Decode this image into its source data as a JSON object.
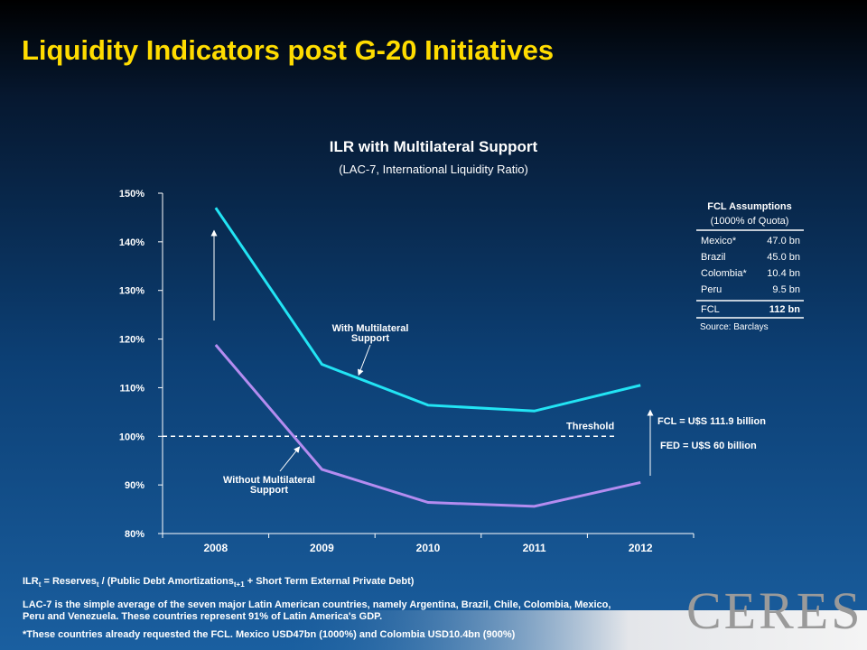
{
  "header": {
    "title": "Liquidity Indicators post G-20 Initiatives"
  },
  "chart_data": {
    "type": "line",
    "title": "ILR with Multilateral Support",
    "subtitle": "(LAC-7, International Liquidity Ratio)",
    "categories": [
      "2008",
      "2009",
      "2010",
      "2011",
      "2012"
    ],
    "series": [
      {
        "name": "With Multilateral Support",
        "color": "#22e4f4",
        "values": [
          147,
          114.8,
          106.4,
          105.2,
          110.5
        ]
      },
      {
        "name": "Without Multilateral Support",
        "color": "#b48cf0",
        "values": [
          118.8,
          93.2,
          86.4,
          85.6,
          90.5
        ]
      }
    ],
    "ylim": [
      80,
      150
    ],
    "yticks": [
      {
        "value": 80,
        "label": "80%"
      },
      {
        "value": 90,
        "label": "90%"
      },
      {
        "value": 100,
        "label": "100%"
      },
      {
        "value": 110,
        "label": "110%"
      },
      {
        "value": 120,
        "label": "120%"
      },
      {
        "value": 130,
        "label": "130%"
      },
      {
        "value": 140,
        "label": "140%"
      },
      {
        "value": 150,
        "label": "150%"
      }
    ],
    "threshold": {
      "value": 100,
      "label": "Threshold"
    },
    "annotations": [
      "FCL = U$S 111.9 billion",
      "FED = U$S 60 billion"
    ],
    "table": {
      "title": "FCL Assumptions",
      "subtitle": "(1000% of Quota)",
      "rows": [
        [
          "Mexico*",
          "47.0 bn"
        ],
        [
          "Brazil",
          "45.0 bn"
        ],
        [
          "Colombia*",
          "10.4 bn"
        ],
        [
          "Peru",
          "9.5 bn"
        ]
      ],
      "total": [
        "FCL",
        "112 bn"
      ],
      "source": "Source: Barclays"
    }
  },
  "footnotes": {
    "formula": [
      "ILR",
      "t",
      " = Reserves",
      "t",
      " / (Public Debt Amortizations",
      "t+1",
      " + Short Term External Private Debt)"
    ],
    "notes": [
      "LAC-7 is the simple average of the seven major Latin American countries, namely Argentina, Brazil, Chile, Colombia, Mexico, Peru and Venezuela. These countries represent 91% of Latin America's GDP.",
      "*These countries already requested the FCL. Mexico USD47bn (1000%) and Colombia USD10.4bn (900%)"
    ]
  },
  "logo": "CERES"
}
